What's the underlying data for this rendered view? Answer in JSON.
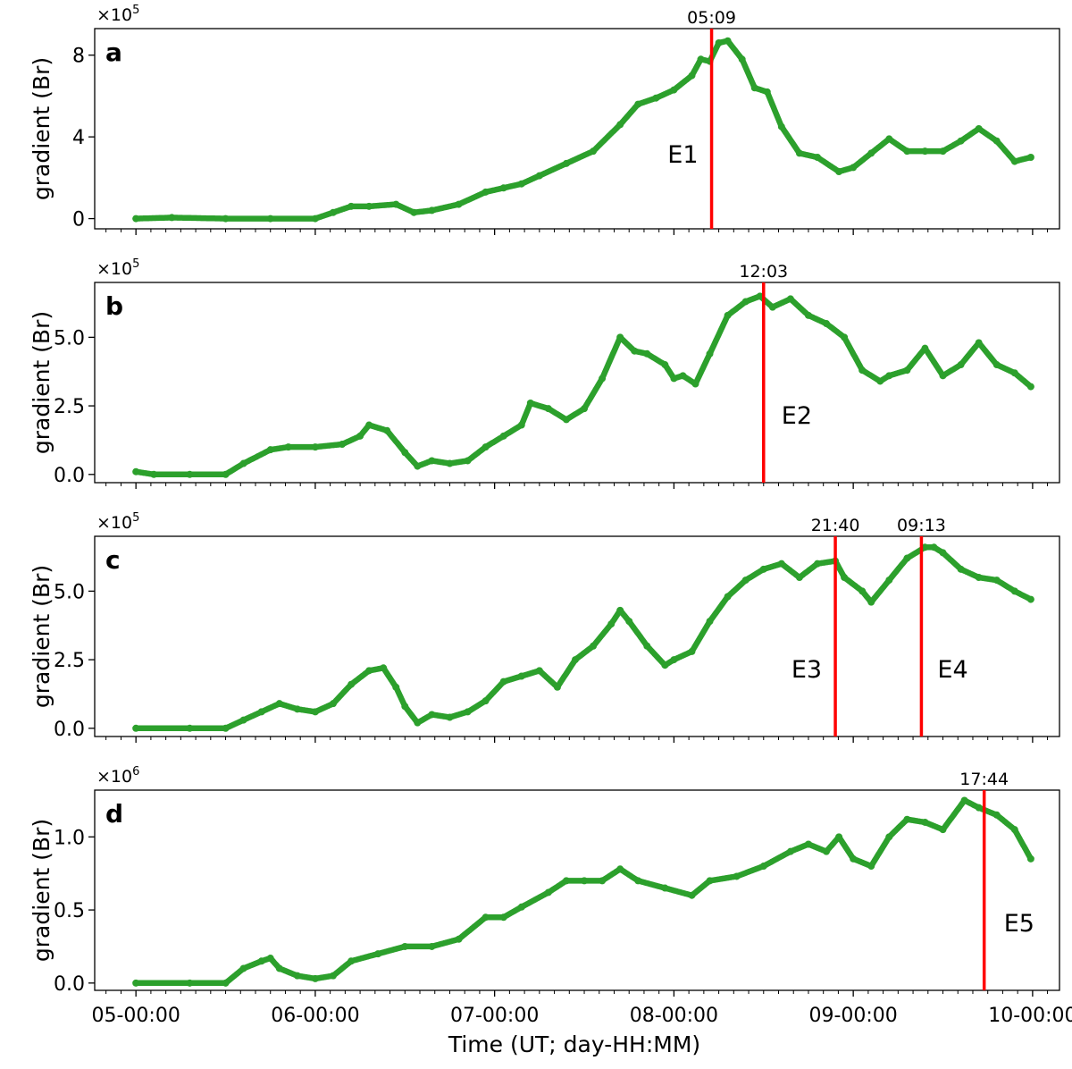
{
  "figure": {
    "xlabel": "Time (UT; day-HH:MM)",
    "x_ticks": [
      "05-00:00",
      "06-00:00",
      "07-00:00",
      "08-00:00",
      "09-00:00",
      "10-00:00"
    ],
    "series_color": "#2ca02c",
    "event_color": "#ff0000"
  },
  "chart_data": [
    {
      "type": "scatter",
      "panel": "a",
      "ylabel": "gradient (Br)",
      "scale_label": "×10",
      "scale_exp": "5",
      "ylim": [
        -0.5,
        9.3
      ],
      "yticks": [
        0,
        4,
        8
      ],
      "ytick_labels": [
        "0",
        "4",
        "8"
      ],
      "xlim": [
        4.77,
        10.15
      ],
      "x_unit": "day",
      "x": [
        5.0,
        5.2,
        5.5,
        5.75,
        6.0,
        6.1,
        6.2,
        6.3,
        6.45,
        6.55,
        6.65,
        6.8,
        6.95,
        7.05,
        7.15,
        7.25,
        7.4,
        7.55,
        7.7,
        7.8,
        7.9,
        8.0,
        8.1,
        8.15,
        8.2,
        8.25,
        8.3,
        8.38,
        8.45,
        8.52,
        8.6,
        8.7,
        8.8,
        8.92,
        9.0,
        9.1,
        9.2,
        9.3,
        9.4,
        9.5,
        9.6,
        9.7,
        9.8,
        9.9,
        9.99
      ],
      "values": [
        0.0,
        0.05,
        0.0,
        0.0,
        0.0,
        0.3,
        0.6,
        0.6,
        0.7,
        0.3,
        0.4,
        0.7,
        1.3,
        1.5,
        1.7,
        2.1,
        2.7,
        3.3,
        4.6,
        5.6,
        5.9,
        6.3,
        7.0,
        7.8,
        7.7,
        8.6,
        8.7,
        7.8,
        6.4,
        6.2,
        4.5,
        3.2,
        3.0,
        2.3,
        2.5,
        3.2,
        3.9,
        3.3,
        3.3,
        3.3,
        3.8,
        4.4,
        3.8,
        2.8,
        3.0
      ],
      "events": [
        {
          "x": 8.21,
          "time_label": "05:09",
          "name": "E1"
        }
      ]
    },
    {
      "type": "scatter",
      "panel": "b",
      "ylabel": "gradient (Br)",
      "scale_label": "×10",
      "scale_exp": "5",
      "ylim": [
        -0.3,
        7.0
      ],
      "yticks": [
        0,
        2.5,
        5
      ],
      "ytick_labels": [
        "0.0",
        "2.5",
        "5.0"
      ],
      "xlim": [
        4.77,
        10.15
      ],
      "x_unit": "day",
      "x": [
        5.0,
        5.1,
        5.3,
        5.5,
        5.6,
        5.75,
        5.85,
        6.0,
        6.15,
        6.25,
        6.3,
        6.4,
        6.5,
        6.57,
        6.65,
        6.75,
        6.85,
        6.95,
        7.05,
        7.15,
        7.2,
        7.3,
        7.4,
        7.5,
        7.6,
        7.7,
        7.78,
        7.85,
        7.95,
        8.0,
        8.05,
        8.12,
        8.2,
        8.3,
        8.4,
        8.48,
        8.55,
        8.65,
        8.75,
        8.85,
        8.95,
        9.05,
        9.15,
        9.2,
        9.3,
        9.4,
        9.5,
        9.6,
        9.7,
        9.8,
        9.9,
        9.99
      ],
      "values": [
        0.1,
        0.0,
        0.0,
        0.0,
        0.4,
        0.9,
        1.0,
        1.0,
        1.1,
        1.4,
        1.8,
        1.6,
        0.8,
        0.3,
        0.5,
        0.4,
        0.5,
        1.0,
        1.4,
        1.8,
        2.6,
        2.4,
        2.0,
        2.4,
        3.5,
        5.0,
        4.5,
        4.4,
        4.0,
        3.5,
        3.6,
        3.3,
        4.4,
        5.8,
        6.3,
        6.5,
        6.1,
        6.4,
        5.8,
        5.5,
        5.0,
        3.8,
        3.4,
        3.6,
        3.8,
        4.6,
        3.6,
        4.0,
        4.8,
        4.0,
        3.7,
        3.2
      ],
      "events": [
        {
          "x": 8.5,
          "time_label": "12:03",
          "name": "E2"
        }
      ]
    },
    {
      "type": "scatter",
      "panel": "c",
      "ylabel": "gradient (Br)",
      "scale_label": "×10",
      "scale_exp": "5",
      "ylim": [
        -0.3,
        7.0
      ],
      "yticks": [
        0,
        2.5,
        5
      ],
      "ytick_labels": [
        "0.0",
        "2.5",
        "5.0"
      ],
      "xlim": [
        4.77,
        10.15
      ],
      "x_unit": "day",
      "x": [
        5.0,
        5.3,
        5.5,
        5.6,
        5.7,
        5.8,
        5.9,
        6.0,
        6.1,
        6.2,
        6.3,
        6.38,
        6.45,
        6.5,
        6.57,
        6.65,
        6.75,
        6.85,
        6.95,
        7.05,
        7.15,
        7.25,
        7.35,
        7.45,
        7.55,
        7.65,
        7.7,
        7.75,
        7.85,
        7.95,
        8.0,
        8.1,
        8.2,
        8.3,
        8.4,
        8.5,
        8.6,
        8.7,
        8.8,
        8.9,
        8.95,
        9.05,
        9.1,
        9.2,
        9.3,
        9.4,
        9.45,
        9.5,
        9.6,
        9.7,
        9.8,
        9.9,
        9.99
      ],
      "values": [
        0.0,
        0.0,
        0.0,
        0.3,
        0.6,
        0.9,
        0.7,
        0.6,
        0.9,
        1.6,
        2.1,
        2.2,
        1.5,
        0.8,
        0.2,
        0.5,
        0.4,
        0.6,
        1.0,
        1.7,
        1.9,
        2.1,
        1.5,
        2.5,
        3.0,
        3.8,
        4.3,
        3.9,
        3.0,
        2.3,
        2.5,
        2.8,
        3.9,
        4.8,
        5.4,
        5.8,
        6.0,
        5.5,
        6.0,
        6.1,
        5.5,
        5.0,
        4.6,
        5.4,
        6.2,
        6.6,
        6.6,
        6.4,
        5.8,
        5.5,
        5.4,
        5.0,
        4.7
      ],
      "events": [
        {
          "x": 8.9,
          "time_label": "21:40",
          "name": "E3"
        },
        {
          "x": 9.38,
          "time_label": "09:13",
          "name": "E4"
        }
      ]
    },
    {
      "type": "scatter",
      "panel": "d",
      "ylabel": "gradient (Br)",
      "scale_label": "×10",
      "scale_exp": "6",
      "ylim": [
        -0.05,
        1.32
      ],
      "yticks": [
        0,
        0.5,
        1.0
      ],
      "ytick_labels": [
        "0.0",
        "0.5",
        "1.0"
      ],
      "xlim": [
        4.77,
        10.15
      ],
      "x_unit": "day",
      "x": [
        5.0,
        5.3,
        5.5,
        5.6,
        5.7,
        5.75,
        5.8,
        5.9,
        6.0,
        6.1,
        6.2,
        6.35,
        6.5,
        6.65,
        6.8,
        6.95,
        7.05,
        7.15,
        7.3,
        7.4,
        7.5,
        7.6,
        7.7,
        7.8,
        7.95,
        8.1,
        8.2,
        8.35,
        8.5,
        8.65,
        8.75,
        8.85,
        8.92,
        9.0,
        9.1,
        9.2,
        9.3,
        9.4,
        9.5,
        9.62,
        9.7,
        9.8,
        9.9,
        9.99
      ],
      "values": [
        0.0,
        0.0,
        0.0,
        0.1,
        0.15,
        0.17,
        0.1,
        0.05,
        0.03,
        0.05,
        0.15,
        0.2,
        0.25,
        0.25,
        0.3,
        0.45,
        0.45,
        0.52,
        0.62,
        0.7,
        0.7,
        0.7,
        0.78,
        0.7,
        0.65,
        0.6,
        0.7,
        0.73,
        0.8,
        0.9,
        0.95,
        0.9,
        1.0,
        0.85,
        0.8,
        1.0,
        1.12,
        1.1,
        1.05,
        1.25,
        1.2,
        1.15,
        1.05,
        0.85
      ],
      "events": [
        {
          "x": 9.73,
          "time_label": "17:44",
          "name": "E5"
        }
      ]
    }
  ]
}
